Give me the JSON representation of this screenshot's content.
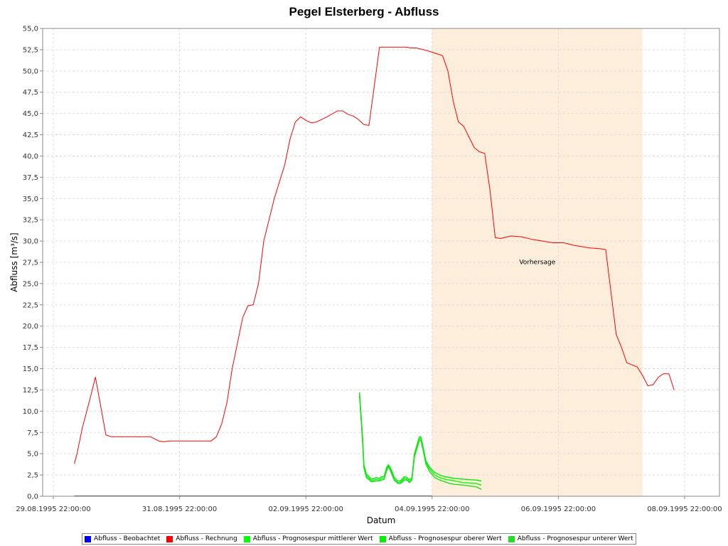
{
  "chart_data": {
    "type": "line",
    "title": "Pegel Elsterberg - Abfluss",
    "xlabel": "Datum",
    "ylabel": "Abfluss [m³/s]",
    "ylim": [
      0,
      55
    ],
    "y_ticks": [
      "0,0",
      "2,5",
      "5,0",
      "7,5",
      "10,0",
      "12,5",
      "15,0",
      "17,5",
      "20,0",
      "22,5",
      "25,0",
      "27,5",
      "30,0",
      "32,5",
      "35,0",
      "37,5",
      "40,0",
      "42,5",
      "45,0",
      "47,5",
      "50,0",
      "52,5",
      "55,0"
    ],
    "x_range": [
      "29.08.1995 22:00",
      "08.09.1995 22:00"
    ],
    "x_ticks": [
      "29.08.1995 22:00:00",
      "31.08.1995 22:00:00",
      "02.09.1995 22:00:00",
      "04.09.1995 22:00:00",
      "06.09.1995 22:00:00",
      "08.09.1995 22:00:00"
    ],
    "grid": true,
    "legend_position": "bottom",
    "forecast_region": {
      "label": "Vorhersage",
      "start": "04.09.1995 22:00",
      "end": "08.09.1995 06:00",
      "color": "#fdeedc"
    },
    "series": [
      {
        "name": "Abfluss - Beobachtet",
        "color": "#0000ff",
        "points": []
      },
      {
        "name": "Abfluss - Rechnung",
        "color": "#ff0000",
        "points": [
          [
            "30.08.1995 06:00",
            3.8
          ],
          [
            "30.08.1995 07:00",
            5.0
          ],
          [
            "30.08.1995 09:00",
            8.0
          ],
          [
            "30.08.1995 12:00",
            11.5
          ],
          [
            "30.08.1995 14:00",
            14.0
          ],
          [
            "30.08.1995 18:00",
            7.2
          ],
          [
            "30.08.1995 20:00",
            7.0
          ],
          [
            "31.08.1995 00:00",
            7.0
          ],
          [
            "31.08.1995 06:00",
            7.0
          ],
          [
            "31.08.1995 11:00",
            7.0
          ],
          [
            "31.08.1995 14:00",
            6.5
          ],
          [
            "31.08.1995 16:00",
            6.4
          ],
          [
            "31.08.1995 18:00",
            6.5
          ],
          [
            "01.09.1995 00:00",
            6.5
          ],
          [
            "01.09.1995 10:00",
            6.5
          ],
          [
            "01.09.1995 12:00",
            7.0
          ],
          [
            "01.09.1995 14:00",
            8.5
          ],
          [
            "01.09.1995 16:00",
            11.0
          ],
          [
            "01.09.1995 18:00",
            15.0
          ],
          [
            "01.09.1995 20:00",
            18.0
          ],
          [
            "01.09.1995 22:00",
            21.0
          ],
          [
            "02.09.1995 00:00",
            22.4
          ],
          [
            "02.09.1995 02:00",
            22.5
          ],
          [
            "02.09.1995 04:00",
            25.0
          ],
          [
            "02.09.1995 06:00",
            30.0
          ],
          [
            "02.09.1995 08:00",
            32.5
          ],
          [
            "02.09.1995 10:00",
            35.0
          ],
          [
            "02.09.1995 14:00",
            39.0
          ],
          [
            "02.09.1995 16:00",
            42.0
          ],
          [
            "02.09.1995 18:00",
            44.0
          ],
          [
            "02.09.1995 20:00",
            44.6
          ],
          [
            "02.09.1995 22:00",
            44.2
          ],
          [
            "03.09.1995 00:00",
            43.9
          ],
          [
            "03.09.1995 02:00",
            44.0
          ],
          [
            "03.09.1995 06:00",
            44.6
          ],
          [
            "03.09.1995 10:00",
            45.3
          ],
          [
            "03.09.1995 12:00",
            45.3
          ],
          [
            "03.09.1995 14:00",
            44.9
          ],
          [
            "03.09.1995 16:00",
            44.7
          ],
          [
            "03.09.1995 18:00",
            44.3
          ],
          [
            "03.09.1995 20:00",
            43.7
          ],
          [
            "03.09.1995 22:00",
            43.6
          ],
          [
            "04.09.1995 02:00",
            52.8
          ],
          [
            "04.09.1995 06:00",
            52.8
          ],
          [
            "04.09.1995 08:00",
            52.8
          ],
          [
            "04.09.1995 12:00",
            52.8
          ],
          [
            "04.09.1995 14:00",
            52.7
          ],
          [
            "04.09.1995 16:00",
            52.7
          ],
          [
            "04.09.1995 20:00",
            52.4
          ],
          [
            "05.09.1995 00:00",
            52.0
          ],
          [
            "05.09.1995 02:00",
            51.8
          ],
          [
            "05.09.1995 04:00",
            50.0
          ],
          [
            "05.09.1995 06:00",
            46.5
          ],
          [
            "05.09.1995 08:00",
            44.0
          ],
          [
            "05.09.1995 10:00",
            43.5
          ],
          [
            "05.09.1995 14:00",
            41.0
          ],
          [
            "05.09.1995 16:00",
            40.5
          ],
          [
            "05.09.1995 18:00",
            40.3
          ],
          [
            "05.09.1995 20:00",
            36.0
          ],
          [
            "05.09.1995 22:00",
            30.4
          ],
          [
            "06.09.1995 00:00",
            30.3
          ],
          [
            "06.09.1995 04:00",
            30.6
          ],
          [
            "06.09.1995 08:00",
            30.5
          ],
          [
            "06.09.1995 12:00",
            30.2
          ],
          [
            "06.09.1995 20:00",
            29.8
          ],
          [
            "07.09.1995 00:00",
            29.8
          ],
          [
            "07.09.1995 04:00",
            29.5
          ],
          [
            "07.09.1995 10:00",
            29.2
          ],
          [
            "07.09.1995 14:00",
            29.1
          ],
          [
            "07.09.1995 16:00",
            29.0
          ],
          [
            "07.09.1995 18:00",
            24.0
          ],
          [
            "07.09.1995 20:00",
            19.0
          ],
          [
            "07.09.1995 22:00",
            17.5
          ],
          [
            "08.09.1995 00:00",
            15.7
          ],
          [
            "08.09.1995 04:00",
            15.2
          ],
          [
            "08.09.1995 06:00",
            14.2
          ],
          [
            "08.09.1995 08:00",
            13.0
          ],
          [
            "08.09.1995 10:00",
            13.1
          ],
          [
            "08.09.1995 12:00",
            14.0
          ],
          [
            "08.09.1995 14:00",
            14.4
          ],
          [
            "08.09.1995 16:00",
            14.4
          ],
          [
            "08.09.1995 18:00",
            12.5
          ]
        ]
      },
      {
        "name": "Abfluss - Prognosespur mittlerer Wert",
        "color": "#00ff00",
        "values": [
          [
            4.85,
            12.0
          ],
          [
            4.9,
            6.5
          ],
          [
            4.92,
            3.5
          ],
          [
            4.96,
            2.4
          ],
          [
            5.04,
            1.8
          ],
          [
            5.12,
            2.0
          ],
          [
            5.16,
            1.9
          ],
          [
            5.2,
            2.1
          ],
          [
            5.24,
            2.1
          ],
          [
            5.28,
            3.2
          ],
          [
            5.31,
            3.6
          ],
          [
            5.36,
            2.8
          ],
          [
            5.4,
            2.0
          ],
          [
            5.46,
            1.6
          ],
          [
            5.5,
            1.6
          ],
          [
            5.56,
            2.1
          ],
          [
            5.6,
            2.0
          ],
          [
            5.64,
            1.7
          ],
          [
            5.68,
            2.0
          ],
          [
            5.72,
            4.8
          ],
          [
            5.76,
            5.8
          ],
          [
            5.8,
            6.8
          ],
          [
            5.82,
            6.8
          ],
          [
            5.86,
            5.5
          ],
          [
            5.9,
            4.0
          ],
          [
            5.96,
            3.2
          ],
          [
            6.04,
            2.5
          ],
          [
            6.12,
            2.2
          ],
          [
            6.2,
            2.0
          ],
          [
            6.28,
            1.9
          ],
          [
            6.36,
            1.8
          ],
          [
            6.5,
            1.6
          ],
          [
            6.7,
            1.5
          ],
          [
            6.78,
            1.3
          ]
        ]
      },
      {
        "name": "Abfluss - Prognosespur oberer Wert",
        "color": "#00ee00",
        "values": [
          [
            4.85,
            12.2
          ],
          [
            4.9,
            6.8
          ],
          [
            4.92,
            3.7
          ],
          [
            4.96,
            2.6
          ],
          [
            5.04,
            2.0
          ],
          [
            5.12,
            2.2
          ],
          [
            5.16,
            2.1
          ],
          [
            5.2,
            2.3
          ],
          [
            5.24,
            2.3
          ],
          [
            5.28,
            3.4
          ],
          [
            5.31,
            3.7
          ],
          [
            5.36,
            3.0
          ],
          [
            5.4,
            2.2
          ],
          [
            5.46,
            1.8
          ],
          [
            5.5,
            1.8
          ],
          [
            5.56,
            2.3
          ],
          [
            5.6,
            2.2
          ],
          [
            5.64,
            1.9
          ],
          [
            5.68,
            2.2
          ],
          [
            5.72,
            5.0
          ],
          [
            5.76,
            6.0
          ],
          [
            5.8,
            7.0
          ],
          [
            5.82,
            7.0
          ],
          [
            5.86,
            5.7
          ],
          [
            5.9,
            4.2
          ],
          [
            5.96,
            3.4
          ],
          [
            6.04,
            2.8
          ],
          [
            6.12,
            2.5
          ],
          [
            6.2,
            2.3
          ],
          [
            6.28,
            2.2
          ],
          [
            6.36,
            2.1
          ],
          [
            6.5,
            2.0
          ],
          [
            6.7,
            1.9
          ],
          [
            6.78,
            1.8
          ]
        ]
      },
      {
        "name": "Abfluss - Prognosespur unterer Wert",
        "color": "#22dd22",
        "values": [
          [
            4.85,
            11.8
          ],
          [
            4.9,
            6.2
          ],
          [
            4.92,
            3.3
          ],
          [
            4.96,
            2.2
          ],
          [
            5.04,
            1.7
          ],
          [
            5.12,
            1.8
          ],
          [
            5.16,
            1.8
          ],
          [
            5.2,
            1.9
          ],
          [
            5.24,
            2.0
          ],
          [
            5.28,
            3.0
          ],
          [
            5.31,
            3.5
          ],
          [
            5.36,
            2.6
          ],
          [
            5.4,
            1.9
          ],
          [
            5.46,
            1.5
          ],
          [
            5.5,
            1.5
          ],
          [
            5.56,
            1.9
          ],
          [
            5.6,
            1.9
          ],
          [
            5.64,
            1.6
          ],
          [
            5.68,
            1.9
          ],
          [
            5.72,
            4.6
          ],
          [
            5.76,
            5.6
          ],
          [
            5.8,
            6.6
          ],
          [
            5.82,
            6.6
          ],
          [
            5.86,
            5.3
          ],
          [
            5.9,
            3.8
          ],
          [
            5.96,
            2.9
          ],
          [
            6.04,
            2.2
          ],
          [
            6.12,
            1.9
          ],
          [
            6.2,
            1.7
          ],
          [
            6.28,
            1.5
          ],
          [
            6.36,
            1.4
          ],
          [
            6.5,
            1.3
          ],
          [
            6.7,
            1.1
          ],
          [
            6.78,
            0.8
          ]
        ]
      }
    ]
  }
}
